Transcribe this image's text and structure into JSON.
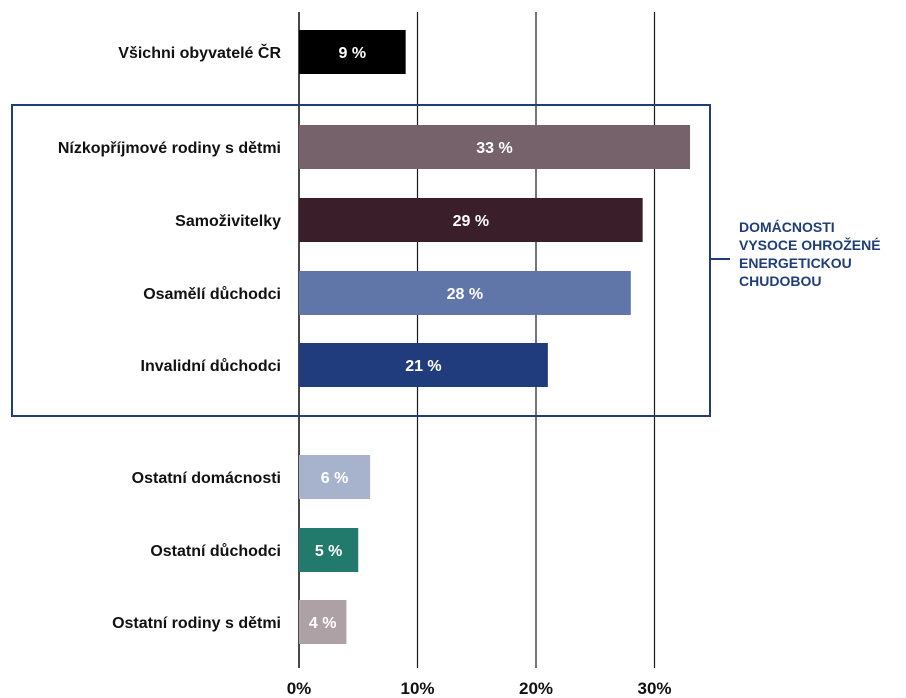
{
  "chart_data": {
    "type": "bar",
    "orientation": "horizontal",
    "categories": [
      "Všichni obyvatelé ČR",
      "Nízkopříjmové rodiny s dětmi",
      "Samoživitelky",
      "Osamělí důchodci",
      "Invalidní důchodci",
      "Ostatní domácnosti",
      "Ostatní důchodci",
      "Ostatní rodiny s dětmi"
    ],
    "values": [
      9,
      33,
      29,
      28,
      21,
      6,
      5,
      4
    ],
    "value_labels": [
      "9 %",
      "33 %",
      "29 %",
      "28 %",
      "21 %",
      "6 %",
      "5 %",
      "4 %"
    ],
    "colors": [
      "#000000",
      "#76626a",
      "#3a1f2b",
      "#6176a8",
      "#213c7c",
      "#a7b2cc",
      "#227a6c",
      "#ada1a6"
    ],
    "xlim": [
      0,
      33
    ],
    "xticks": [
      0,
      10,
      20,
      30
    ],
    "xtick_labels": [
      "0%",
      "10%",
      "20%",
      "30%"
    ],
    "grid": true,
    "highlight_group": {
      "categories": [
        "Nízkopříjmové rodiny s dětmi",
        "Samoživitelky",
        "Osamělí důchodci",
        "Invalidní důchodci"
      ],
      "label_lines": [
        "DOMÁCNOSTI",
        "VYSOCE OHROŽENÉ",
        "ENERGETICKOU",
        "CHUDOBOU"
      ],
      "color": "#1f3d7a"
    }
  }
}
